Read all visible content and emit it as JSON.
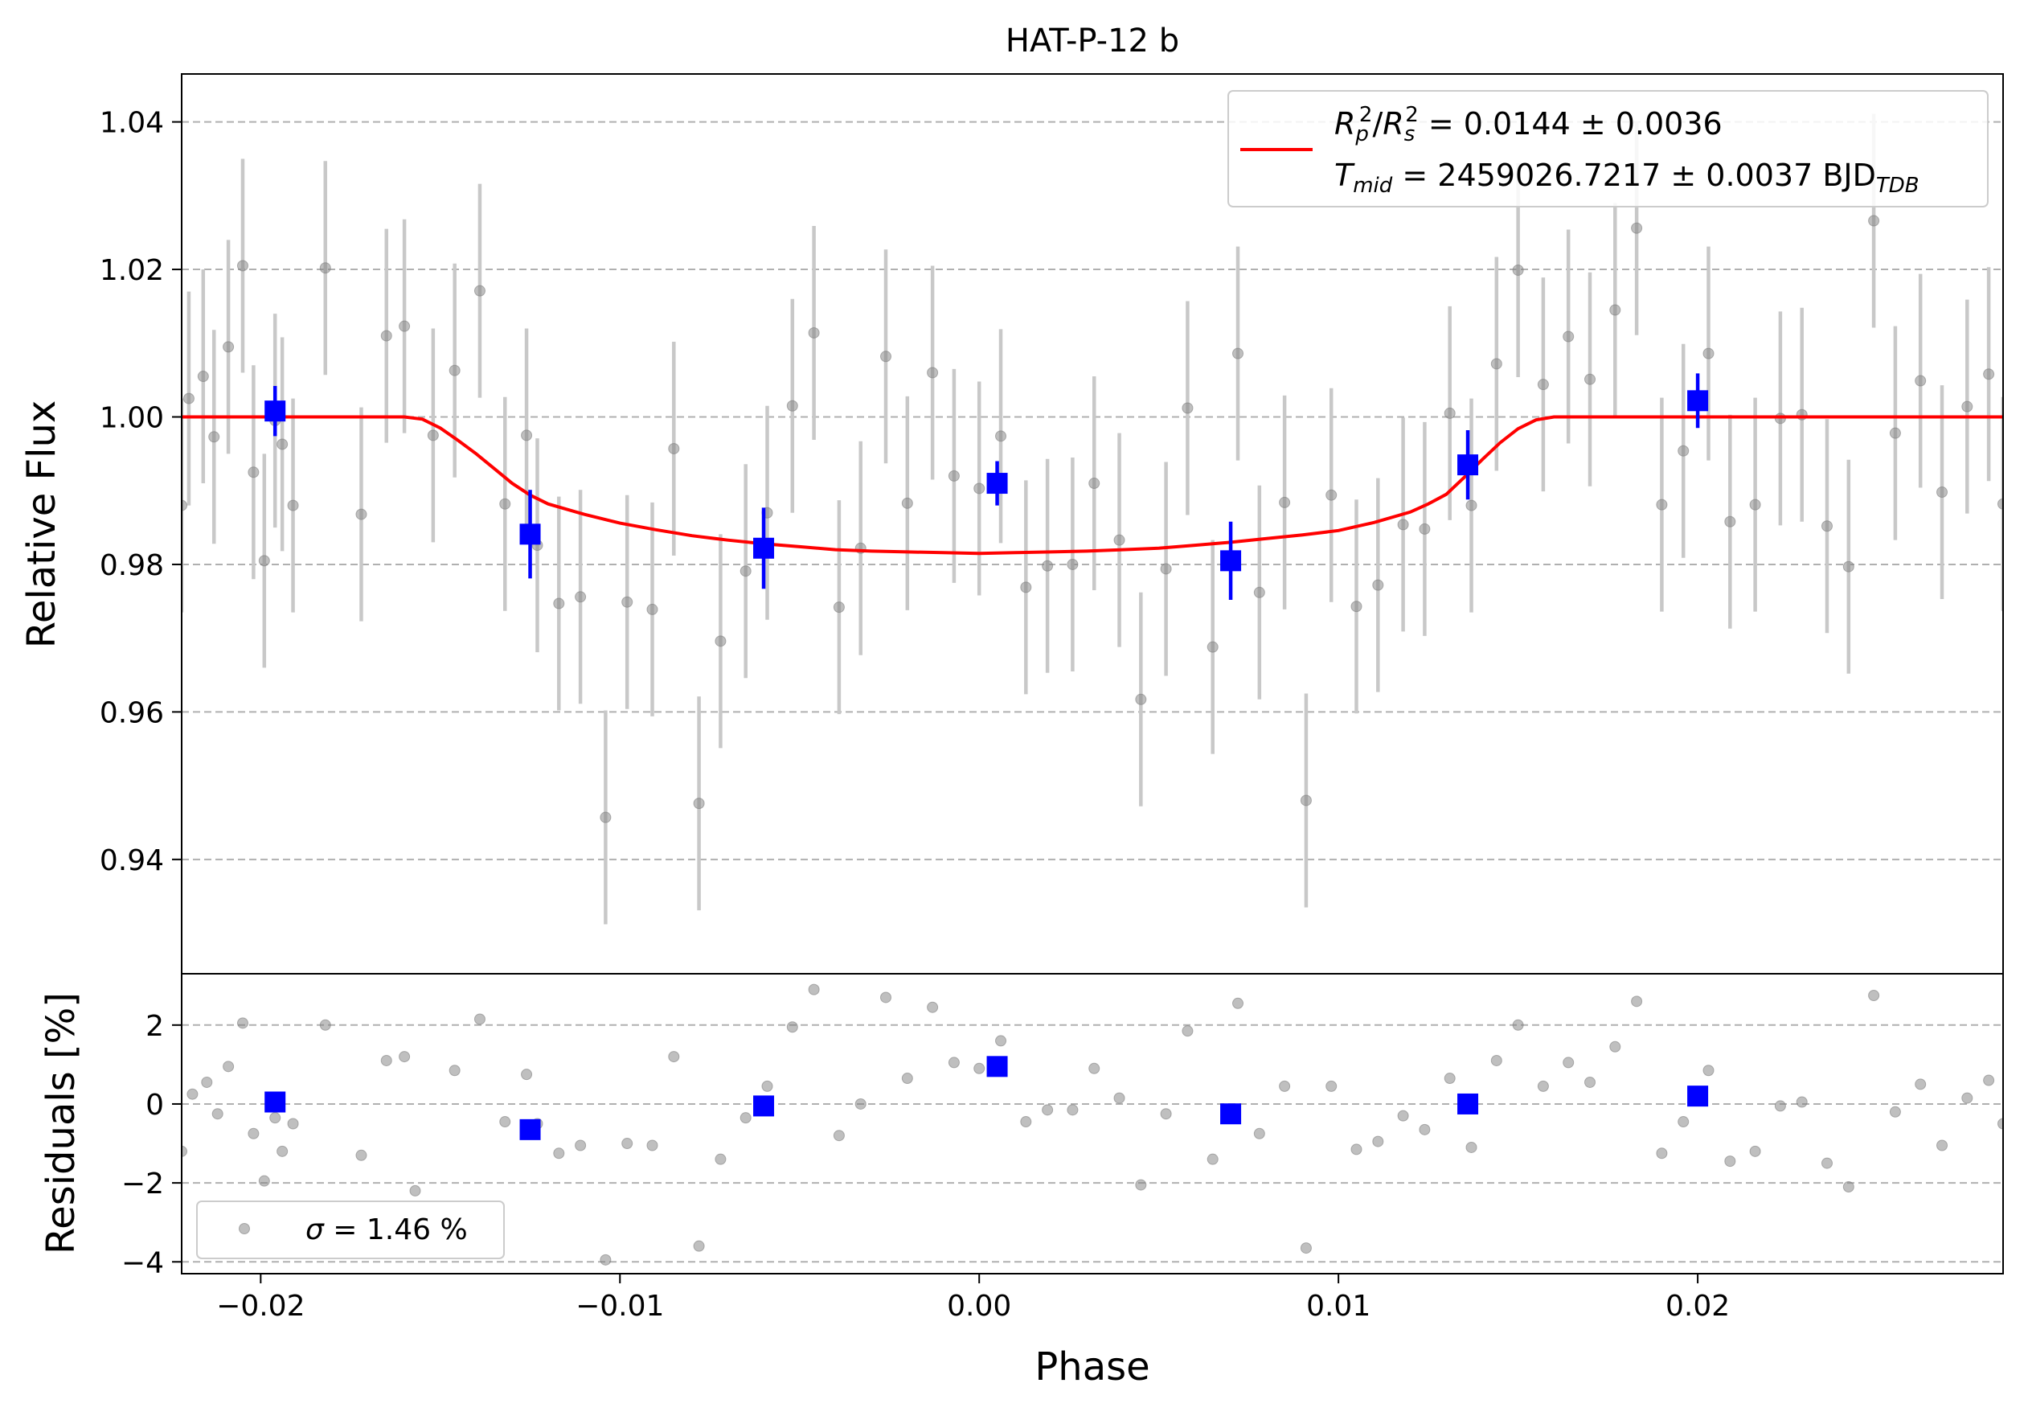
{
  "chart_data": [
    {
      "type": "scatter",
      "title": "HAT-P-12 b",
      "xlabel": "",
      "ylabel": "Relative Flux",
      "xlim": [
        -0.0222,
        0.0285
      ],
      "ylim": [
        0.9245,
        1.0465
      ],
      "grid": "y-dashed",
      "yticks": [
        0.94,
        0.96,
        0.98,
        1.0,
        1.02,
        1.04
      ],
      "ytick_labels": [
        "0.94",
        "0.96",
        "0.98",
        "1.00",
        "1.02",
        "1.04"
      ],
      "legend": {
        "placement": "top-right",
        "line1": "R_p^2/R_s^2 = 0.0144 ± 0.0036",
        "line2": "T_mid = 2459026.7217 ± 0.0037 BJD_TDB",
        "line1_parts": {
          "p1": "R",
          "p1sub": "p",
          "p1sup": "2",
          "slash": "/",
          "p2": "R",
          "p2sub": "s",
          "p2sup": "2",
          "rest": " = 0.0144 ± 0.0036"
        },
        "line2_parts": {
          "p1": "T",
          "p1sub": "mid",
          "rest": " = 2459026.7217 ± 0.0037 BJD",
          "unit_sub": "TDB"
        }
      },
      "model": {
        "name": "transit model",
        "color": "#ff0000",
        "points": [
          [
            -0.0222,
            1.0
          ],
          [
            -0.016,
            1.0
          ],
          [
            -0.0155,
            0.9997
          ],
          [
            -0.015,
            0.9985
          ],
          [
            -0.0145,
            0.9968
          ],
          [
            -0.014,
            0.995
          ],
          [
            -0.0135,
            0.993
          ],
          [
            -0.013,
            0.991
          ],
          [
            -0.0125,
            0.9894
          ],
          [
            -0.012,
            0.9882
          ],
          [
            -0.011,
            0.9868
          ],
          [
            -0.01,
            0.9856
          ],
          [
            -0.009,
            0.9847
          ],
          [
            -0.008,
            0.9839
          ],
          [
            -0.007,
            0.9833
          ],
          [
            -0.006,
            0.9828
          ],
          [
            -0.005,
            0.9824
          ],
          [
            -0.004,
            0.982
          ],
          [
            -0.003,
            0.9818
          ],
          [
            -0.002,
            0.9817
          ],
          [
            -0.001,
            0.9816
          ],
          [
            0.0,
            0.9815
          ],
          [
            0.001,
            0.9816
          ],
          [
            0.002,
            0.9817
          ],
          [
            0.003,
            0.9818
          ],
          [
            0.004,
            0.982
          ],
          [
            0.005,
            0.9822
          ],
          [
            0.006,
            0.9826
          ],
          [
            0.007,
            0.983
          ],
          [
            0.008,
            0.9835
          ],
          [
            0.009,
            0.984
          ],
          [
            0.01,
            0.9846
          ],
          [
            0.011,
            0.9857
          ],
          [
            0.012,
            0.9871
          ],
          [
            0.0125,
            0.9882
          ],
          [
            0.013,
            0.9895
          ],
          [
            0.0135,
            0.9918
          ],
          [
            0.014,
            0.9942
          ],
          [
            0.0145,
            0.9965
          ],
          [
            0.015,
            0.9984
          ],
          [
            0.0155,
            0.9996
          ],
          [
            0.016,
            1.0
          ],
          [
            0.0285,
            1.0
          ]
        ]
      },
      "series": [
        {
          "name": "data",
          "marker": "circle",
          "color": "#808080",
          "x": [
            -0.0222,
            -0.022,
            -0.0216,
            -0.0213,
            -0.0209,
            -0.0205,
            -0.0202,
            -0.0199,
            -0.0196,
            -0.0194,
            -0.0191,
            -0.0182,
            -0.0172,
            -0.0165,
            -0.016,
            -0.0152,
            -0.0146,
            -0.0139,
            -0.0132,
            -0.0126,
            -0.0123,
            -0.0117,
            -0.0111,
            -0.0104,
            -0.0098,
            -0.0091,
            -0.0085,
            -0.0078,
            -0.0072,
            -0.0065,
            -0.0059,
            -0.0052,
            -0.0046,
            -0.0039,
            -0.0033,
            -0.0026,
            -0.002,
            -0.0013,
            -0.0007,
            0.0,
            0.0006,
            0.0013,
            0.0019,
            0.0026,
            0.0032,
            0.0039,
            0.0045,
            0.0052,
            0.0058,
            0.0065,
            0.0072,
            0.0078,
            0.0085,
            0.0091,
            0.0098,
            0.0105,
            0.0111,
            0.0118,
            0.0124,
            0.0131,
            0.0137,
            0.0144,
            0.015,
            0.0157,
            0.0164,
            0.017,
            0.0177,
            0.0183,
            0.019,
            0.0196,
            0.0203,
            0.0209,
            0.0216,
            0.0223,
            0.0229,
            0.0236,
            0.0242,
            0.0249,
            0.0255,
            0.0262,
            0.0268,
            0.0275,
            0.0281,
            0.0285
          ],
          "y": [
            0.988,
            1.0025,
            1.0055,
            0.9973,
            1.0095,
            1.0205,
            0.9925,
            0.9805,
            0.9995,
            0.9963,
            0.988,
            1.0202,
            0.9868,
            1.011,
            1.0123,
            0.9975,
            1.0063,
            1.0171,
            0.9882,
            0.9975,
            0.9826,
            0.9747,
            0.9756,
            0.9457,
            0.9749,
            0.9739,
            0.9957,
            0.9476,
            0.9696,
            0.9791,
            0.987,
            1.0015,
            1.0114,
            0.9742,
            0.9822,
            1.0082,
            0.9883,
            1.006,
            0.992,
            0.9903,
            0.9974,
            0.9769,
            0.9798,
            0.98,
            0.991,
            0.9833,
            0.9617,
            0.9794,
            1.0012,
            0.9688,
            1.0086,
            0.9762,
            0.9884,
            0.948,
            0.9894,
            0.9743,
            0.9772,
            0.9854,
            0.9848,
            1.0005,
            0.988,
            1.0072,
            1.0199,
            1.0044,
            1.0109,
            1.0051,
            1.0145,
            1.0256,
            0.9881,
            0.9954,
            1.0086,
            0.9858,
            0.9881,
            0.9998,
            1.0003,
            0.9852,
            0.9797,
            1.0266,
            0.9978,
            1.0049,
            0.9898,
            1.0014,
            1.0058,
            0.9882
          ],
          "yerr": 0.0145
        },
        {
          "name": "binned",
          "marker": "square",
          "color": "#0000ff",
          "x": [
            -0.0196,
            -0.0125,
            -0.006,
            0.0005,
            0.007,
            0.0136,
            0.02
          ],
          "y": [
            1.0008,
            0.9841,
            0.9822,
            0.991,
            0.9805,
            0.9935,
            1.0022
          ],
          "yerr": [
            0.0034,
            0.006,
            0.0055,
            0.003,
            0.0053,
            0.0047,
            0.0037
          ]
        }
      ]
    },
    {
      "type": "scatter",
      "title": "",
      "xlabel": "Phase",
      "ylabel": "Residuals [%]",
      "xlim": [
        -0.0222,
        0.0285
      ],
      "ylim": [
        -4.3,
        3.3
      ],
      "grid": "y-dashed",
      "xticks": [
        -0.02,
        -0.01,
        0.0,
        0.01,
        0.02
      ],
      "xtick_labels": [
        "−0.02",
        "−0.01",
        "0.00",
        "0.01",
        "0.02"
      ],
      "yticks": [
        -4,
        -2,
        0,
        2
      ],
      "ytick_labels": [
        "−4",
        "−2",
        "0",
        "2"
      ],
      "legend": {
        "placement": "bottom-left",
        "label": "σ = 1.46 %",
        "parts": {
          "sym": "σ",
          "rest": " = 1.46 %"
        }
      },
      "series": [
        {
          "name": "residuals",
          "marker": "circle",
          "color": "#808080",
          "x": [
            -0.0222,
            -0.0219,
            -0.0215,
            -0.0212,
            -0.0209,
            -0.0205,
            -0.0202,
            -0.0199,
            -0.0196,
            -0.0194,
            -0.0191,
            -0.0182,
            -0.0172,
            -0.0165,
            -0.016,
            -0.0157,
            -0.0146,
            -0.0139,
            -0.0132,
            -0.0126,
            -0.0123,
            -0.0117,
            -0.0111,
            -0.0104,
            -0.0098,
            -0.0091,
            -0.0085,
            -0.0078,
            -0.0072,
            -0.0065,
            -0.0059,
            -0.0052,
            -0.0046,
            -0.0039,
            -0.0033,
            -0.0026,
            -0.002,
            -0.0013,
            -0.0007,
            0.0,
            0.0006,
            0.0013,
            0.0019,
            0.0026,
            0.0032,
            0.0039,
            0.0045,
            0.0052,
            0.0058,
            0.0065,
            0.0072,
            0.0078,
            0.0085,
            0.0091,
            0.0098,
            0.0105,
            0.0111,
            0.0118,
            0.0124,
            0.0131,
            0.0137,
            0.0144,
            0.015,
            0.0157,
            0.0164,
            0.017,
            0.0177,
            0.0183,
            0.019,
            0.0196,
            0.0203,
            0.0209,
            0.0216,
            0.0223,
            0.0229,
            0.0236,
            0.0242,
            0.0249,
            0.0255,
            0.0262,
            0.0268,
            0.0275,
            0.0281,
            0.0285
          ],
          "y": [
            -1.2,
            0.25,
            0.55,
            -0.25,
            0.95,
            2.05,
            -0.75,
            -1.95,
            -0.35,
            -1.2,
            -0.5,
            2.0,
            -1.3,
            1.1,
            1.2,
            -2.2,
            0.85,
            2.15,
            -0.45,
            0.75,
            -0.5,
            -1.25,
            -1.05,
            -3.95,
            -1.0,
            -1.05,
            1.2,
            -3.6,
            -1.4,
            -0.35,
            0.45,
            1.95,
            2.9,
            -0.8,
            0.0,
            2.7,
            0.65,
            2.45,
            1.05,
            0.9,
            1.6,
            -0.45,
            -0.15,
            -0.15,
            0.9,
            0.15,
            -2.05,
            -0.25,
            1.85,
            -1.4,
            2.55,
            -0.75,
            0.45,
            -3.65,
            0.45,
            -1.15,
            -0.95,
            -0.3,
            -0.65,
            0.65,
            -1.1,
            1.1,
            2.0,
            0.45,
            1.05,
            0.55,
            1.45,
            2.6,
            -1.25,
            -0.45,
            0.85,
            -1.45,
            -1.2,
            -0.05,
            0.05,
            -1.5,
            -2.1,
            2.75,
            -0.2,
            0.5,
            -1.05,
            0.15,
            0.6,
            -0.5
          ]
        },
        {
          "name": "binned residuals",
          "marker": "square",
          "color": "#0000ff",
          "x": [
            -0.0196,
            -0.0125,
            -0.006,
            0.0005,
            0.007,
            0.0136,
            0.02
          ],
          "y": [
            0.05,
            -0.65,
            -0.05,
            0.95,
            -0.25,
            0.0,
            0.2
          ]
        }
      ]
    }
  ]
}
